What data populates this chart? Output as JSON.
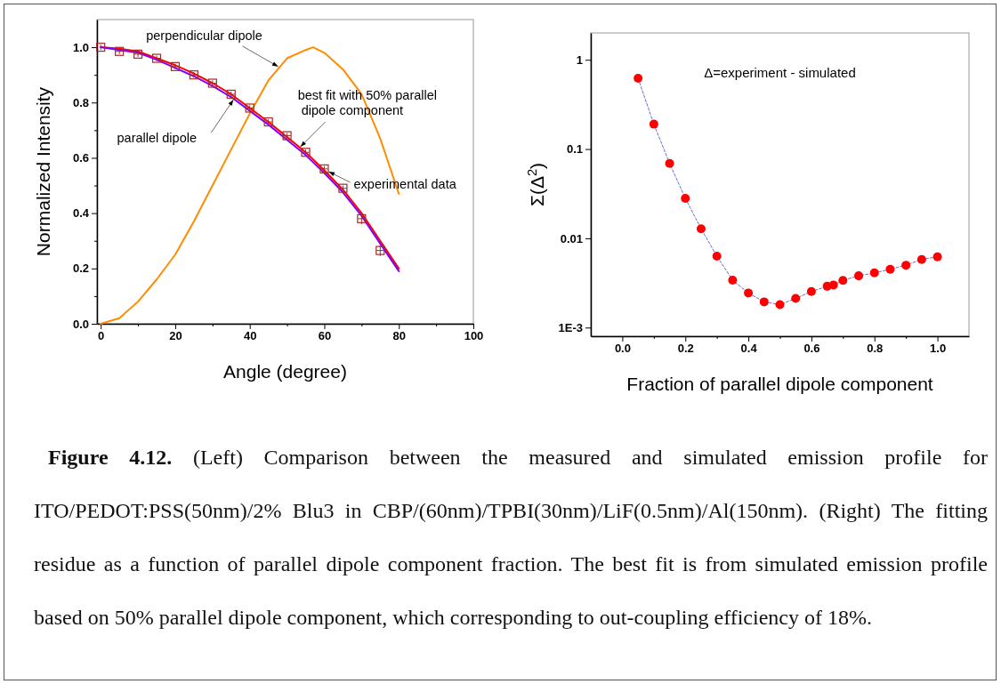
{
  "chart_data": [
    {
      "type": "line",
      "xlabel": "Angle (degree)",
      "ylabel": "Normalized Intensity",
      "xlim": [
        -1,
        100
      ],
      "ylim": [
        0,
        1.1
      ],
      "xticks": [
        0,
        {
          "value": 10,
          "label": null
        },
        20,
        {
          "value": 30,
          "label": null
        },
        40,
        {
          "value": 50,
          "label": null
        },
        60,
        {
          "value": 70,
          "label": null
        },
        80,
        {
          "value": 90,
          "label": null
        },
        100
      ],
      "yticks": [
        {
          "value": 0,
          "label": "0.0"
        },
        {
          "value": 0.1,
          "label": null
        },
        0.2,
        {
          "value": 0.3,
          "label": null
        },
        0.4,
        {
          "value": 0.5,
          "label": null
        },
        0.6,
        {
          "value": 0.7,
          "label": null
        },
        0.8,
        {
          "value": 0.9,
          "label": null
        },
        {
          "value": 1,
          "label": "1.0"
        }
      ],
      "series": [
        {
          "type": "line",
          "color": "#ff8c00",
          "x": [
            0,
            5,
            10,
            15,
            20,
            25,
            30,
            35,
            40,
            45,
            50,
            55,
            57,
            60,
            65,
            70,
            75,
            77.5,
            80
          ],
          "values": [
            0,
            0.02,
            0.08,
            0.16,
            0.25,
            0.37,
            0.5,
            0.63,
            0.76,
            0.88,
            0.96,
            0.99,
            1.0,
            0.98,
            0.92,
            0.83,
            0.67,
            0.57,
            0.47
          ]
        },
        {
          "type": "line",
          "color": "#ff0000",
          "x": [
            0,
            5,
            10,
            15,
            20,
            25,
            30,
            35,
            40,
            45,
            50,
            55,
            60,
            65,
            70,
            75,
            80
          ],
          "values": [
            1.0,
            0.995,
            0.985,
            0.96,
            0.935,
            0.905,
            0.87,
            0.83,
            0.78,
            0.73,
            0.675,
            0.62,
            0.555,
            0.485,
            0.4,
            0.3,
            0.2
          ]
        },
        {
          "type": "line",
          "color": "#8000ff",
          "x": [
            0,
            5,
            10,
            15,
            20,
            25,
            30,
            35,
            40,
            45,
            50,
            55,
            60,
            65,
            70,
            75,
            80
          ],
          "values": [
            1.0,
            0.99,
            0.98,
            0.955,
            0.925,
            0.895,
            0.86,
            0.82,
            0.77,
            0.72,
            0.665,
            0.61,
            0.545,
            0.475,
            0.39,
            0.29,
            0.19
          ]
        },
        {
          "type": "scatter",
          "color": "#a52a2a",
          "marker": "square",
          "x": [
            0,
            5,
            10,
            15,
            20,
            25,
            30,
            35,
            40,
            45,
            50,
            55,
            60,
            65,
            70,
            75
          ],
          "values": [
            1.0,
            0.985,
            0.975,
            0.96,
            0.93,
            0.9,
            0.87,
            0.83,
            0.78,
            0.73,
            0.68,
            0.62,
            0.56,
            0.49,
            0.38,
            0.265
          ],
          "errors": [
            0.01,
            0.01,
            0.01,
            0.01,
            0.01,
            0.01,
            0.01,
            0.01,
            0.01,
            0.01,
            0.01,
            0.01,
            0.01,
            0.01,
            0.02,
            0.02
          ],
          "xerrors": [
            null,
            1,
            1,
            1,
            1,
            1,
            1,
            1,
            1,
            1,
            1,
            1,
            1,
            1,
            1,
            1
          ]
        }
      ],
      "annotations": [
        {
          "text": "perpendicular dipole",
          "x": 47.6,
          "y": 0.93
        },
        {
          "text": "best fit with 50% parallel dipole component",
          "x": 53.6,
          "y": 0.64
        },
        {
          "text": "parallel dipole",
          "x": 35.6,
          "y": 0.81
        },
        {
          "text": "experimental data",
          "x": 61.2,
          "y": 0.55
        }
      ]
    },
    {
      "type": "line",
      "xlabel": "Fraction of parallel dipole component",
      "ylabel": "Σ(Δ$^{2}$)",
      "log": "y",
      "xlim": [
        -0.1,
        1.1
      ],
      "ylim": [
        0.0008,
        2
      ],
      "xticks": [
        {
          "value": 0,
          "label": "0.0"
        },
        {
          "value": 0.1,
          "label": null
        },
        0.2,
        {
          "value": 0.3,
          "label": null
        },
        0.4,
        {
          "value": 0.5,
          "label": null
        },
        0.6,
        {
          "value": 0.7,
          "label": null
        },
        0.8,
        {
          "value": 0.9,
          "label": null
        },
        {
          "value": 1,
          "label": "1.0"
        }
      ],
      "yticks": [
        1,
        0.1,
        0.01,
        {
          "value": 0.001,
          "label": "1E-3"
        }
      ],
      "x": [
        0.05,
        0.1,
        0.15,
        0.2,
        0.25,
        0.3,
        0.35,
        0.4,
        0.45,
        0.5,
        0.55,
        0.6,
        0.65,
        0.67,
        0.7,
        0.75,
        0.8,
        0.85,
        0.9,
        0.95,
        1.0
      ],
      "series": [
        {
          "type": "line",
          "color": "#6a6acd",
          "line_style": "dashed",
          "values": [
            0.62,
            0.19,
            0.069,
            0.028,
            0.0128,
            0.0063,
            0.0034,
            0.00244,
            0.00194,
            0.00181,
            0.00212,
            0.00253,
            0.0029,
            0.003,
            0.00338,
            0.0038,
            0.0041,
            0.0045,
            0.005,
            0.0058,
            0.0062
          ]
        },
        {
          "type": "scatter",
          "color": "#ff0000",
          "marker": "circle",
          "values": [
            0.62,
            0.19,
            0.069,
            0.028,
            0.0128,
            0.0063,
            0.0034,
            0.00244,
            0.00194,
            0.00181,
            0.00212,
            0.00253,
            0.0029,
            0.003,
            0.00338,
            0.0038,
            0.0041,
            0.0045,
            0.005,
            0.0058,
            0.0062
          ]
        }
      ],
      "annotations": [
        "Δ=experiment - simulated"
      ]
    },
    {
      "type": "other",
      "annotations": [
        "Figure 4.12.",
        "(Left) Comparison between the measured and simulated emission profile for ITO/PEDOT:PSS(50nm)/2% Blu3 in CBP/(60nm)/TPBI(30nm)/LiF(0.5nm)/Al(150nm).  (Right) The fitting residue as a function of parallel dipole component fraction.  The best fit is from simulated emission profile based on 50% parallel dipole component, which corresponding to out-coupling efficiency of 18%."
      ]
    }
  ]
}
